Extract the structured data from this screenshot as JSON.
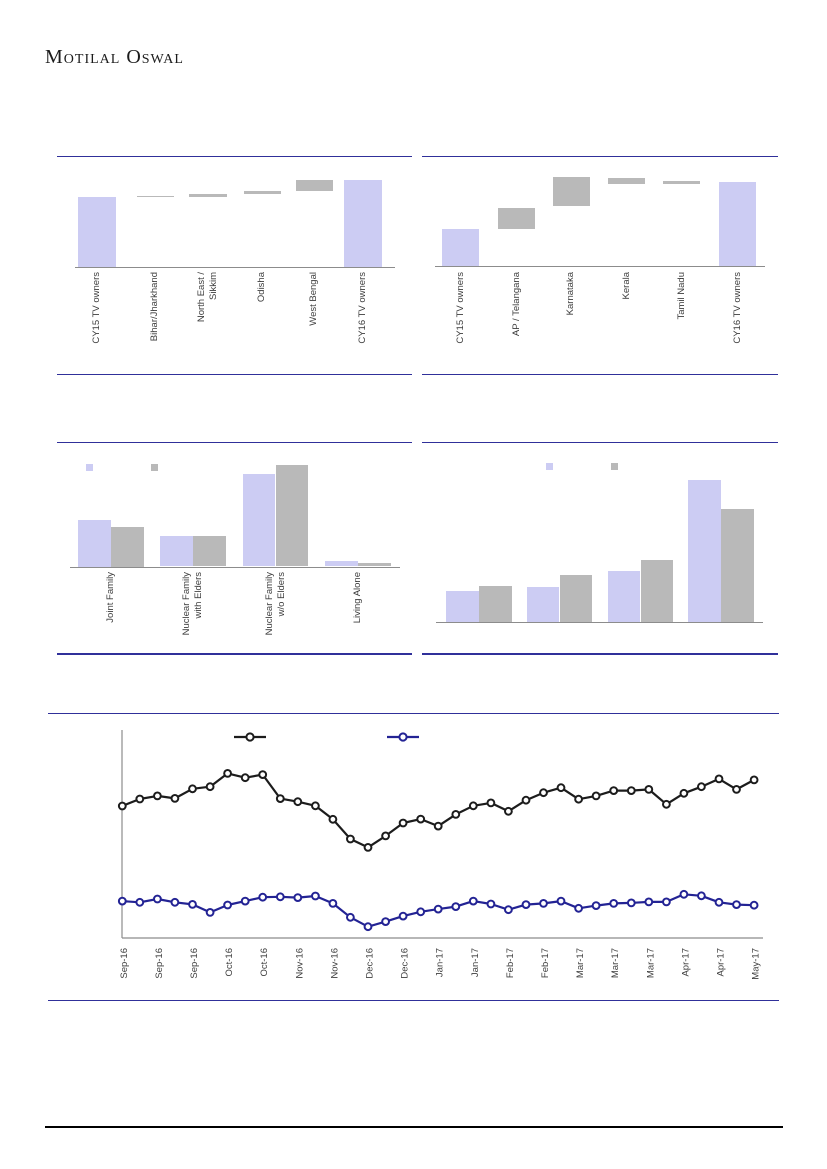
{
  "page": {
    "brand": "Motilal Oswal",
    "rule_color": "#30309a",
    "axis_color": "#8c8c8c",
    "label_color": "#3d3d3d"
  },
  "chart_data": [
    {
      "type": "waterfall",
      "categories": [
        "CY15 TV owners",
        "Bihar/Jharkhand",
        "North East /\nSikkim",
        "Odisha",
        "West Bengal",
        "CY16 TV owners"
      ],
      "roles": [
        "total",
        "delta",
        "delta",
        "delta",
        "delta",
        "total"
      ],
      "segments": [
        [
          0,
          70.5
        ],
        [
          70,
          71.3
        ],
        [
          70,
          73
        ],
        [
          72.7,
          76
        ],
        [
          76.3,
          87.3
        ],
        [
          0,
          87
        ]
      ],
      "ylim": [
        0,
        100
      ],
      "total_color": "#ccccf3",
      "delta_color": "#b9b9b9"
    },
    {
      "type": "waterfall",
      "categories": [
        "CY15 TV owners",
        "AP / Telangana",
        "Karnataka",
        "Kerala",
        "Tamil Nadu",
        "CY16 TV owners"
      ],
      "roles": [
        "total",
        "delta",
        "delta",
        "delta",
        "delta",
        "total"
      ],
      "segments": [
        [
          0,
          36.7
        ],
        [
          36.7,
          58.3
        ],
        [
          60,
          88.7
        ],
        [
          81.7,
          87.7
        ],
        [
          82.3,
          85
        ],
        [
          0,
          84
        ]
      ],
      "ylim": [
        0,
        100
      ],
      "total_color": "#ccccf3",
      "delta_color": "#b9b9b9"
    },
    {
      "type": "bar",
      "categories": [
        "Joint Family",
        "Nuclear Family\nwith Elders",
        "Nuclear Family\nw/o Elders",
        "Living Alone"
      ],
      "series": [
        {
          "name": "",
          "color": "#ccccf3",
          "values": [
            26.5,
            17.3,
            53.1,
            3.2
          ]
        },
        {
          "name": "",
          "color": "#b9b9b9",
          "values": [
            22.5,
            17.3,
            58.1,
            1.9
          ]
        }
      ],
      "ylim": [
        0,
        60
      ],
      "legend_position": "top"
    },
    {
      "type": "bar",
      "categories": [
        "",
        "",
        "",
        ""
      ],
      "series": [
        {
          "name": "",
          "color": "#ccccf3",
          "values": [
            11.9,
            13.6,
            19.8,
            54.7
          ]
        },
        {
          "name": "",
          "color": "#b9b9b9",
          "values": [
            13.9,
            17.9,
            23.7,
            43.7
          ]
        }
      ],
      "ylim": [
        0,
        60
      ],
      "legend_position": "top"
    },
    {
      "type": "line",
      "x_labels": [
        "Sep-16",
        "Sep-16",
        "Sep-16",
        "Oct-16",
        "Oct-16",
        "Nov-16",
        "Nov-16",
        "Dec-16",
        "Dec-16",
        "Jan-17",
        "Jan-17",
        "Feb-17",
        "Feb-17",
        "Mar-17",
        "Mar-17",
        "Mar-17",
        "Apr-17",
        "Apr-17",
        "May-17"
      ],
      "label_every": 2,
      "ylim": [
        0,
        100
      ],
      "legend_position": "top",
      "series": [
        {
          "name": "",
          "color": "#1c1c1c",
          "values": [
            64.4,
            67.8,
            69.3,
            68.1,
            72.8,
            73.8,
            80.3,
            78.2,
            79.7,
            68.0,
            66.5,
            64.5,
            57.9,
            48.3,
            44.2,
            49.8,
            56.1,
            58.0,
            54.6,
            60.3,
            64.5,
            65.9,
            61.8,
            67.2,
            70.9,
            73.3,
            67.7,
            69.3,
            71.9,
            71.9,
            72.5,
            65.2,
            70.6,
            73.8,
            77.6,
            72.5,
            77.1
          ]
        },
        {
          "name": "",
          "color": "#232394",
          "values": [
            18.0,
            17.4,
            19.0,
            17.4,
            16.4,
            12.5,
            16.1,
            18.0,
            19.9,
            20.1,
            19.7,
            20.5,
            16.9,
            10.1,
            5.5,
            8.0,
            10.7,
            12.8,
            14.1,
            15.3,
            18.0,
            16.6,
            13.8,
            16.3,
            16.9,
            18.0,
            14.5,
            15.8,
            16.9,
            17.1,
            17.6,
            17.6,
            21.3,
            20.6,
            17.4,
            16.3,
            16.0
          ]
        }
      ]
    }
  ]
}
